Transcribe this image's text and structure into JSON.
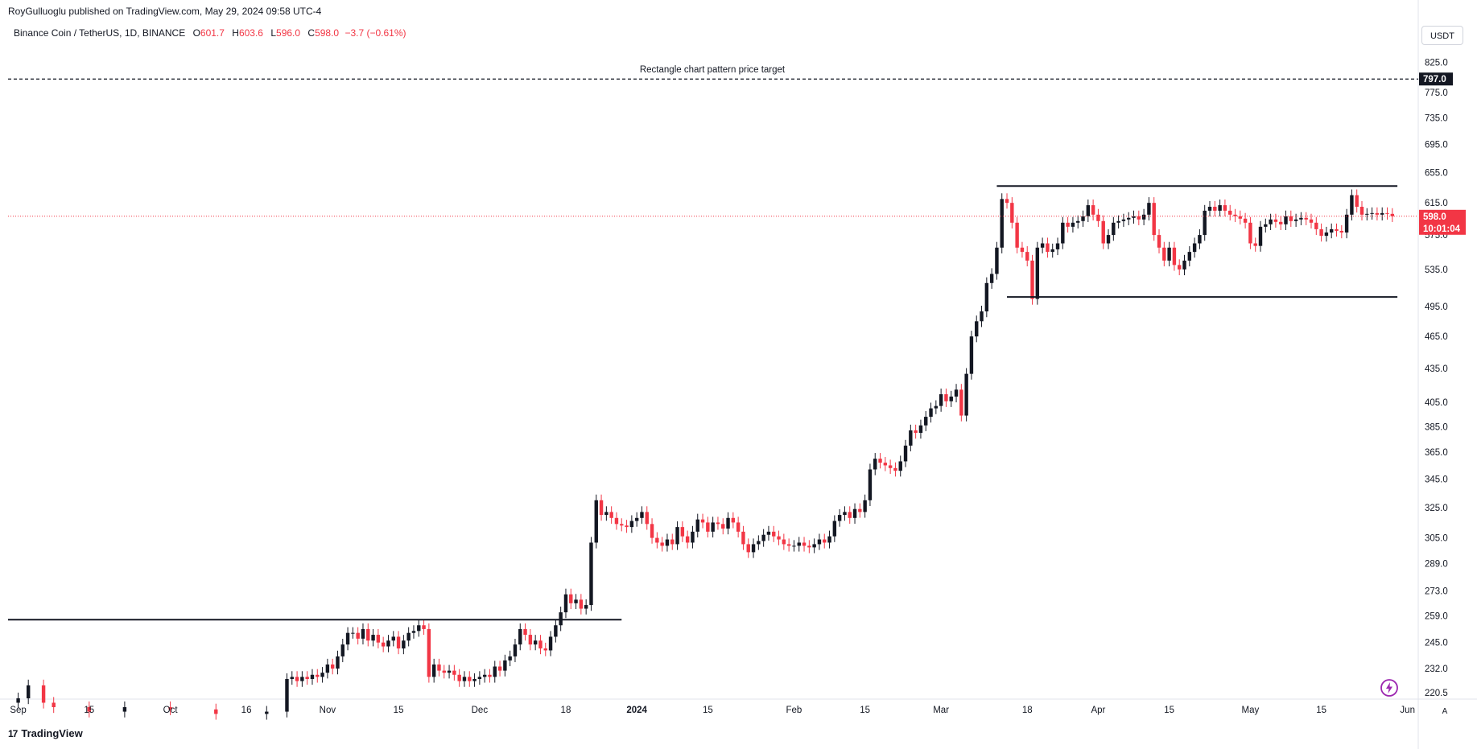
{
  "header": {
    "publisher": "RoyGulluoglu published on TradingView.com, May 29, 2024 09:58 UTC-4",
    "symbol": "Binance Coin / TetherUS, 1D, BINANCE",
    "open_label": "O",
    "open": "601.7",
    "high_label": "H",
    "high": "603.6",
    "low_label": "L",
    "low": "596.0",
    "close_label": "C",
    "close": "598.0",
    "change": "−3.7 (−0.61%)"
  },
  "currency_button": "USDT",
  "auto_button": "A",
  "footer": {
    "brand": "TradingView",
    "mark": "17"
  },
  "colors": {
    "up": "#131722",
    "down": "#f23645",
    "last_price_line": "#f23645",
    "target_tag": "#131722"
  },
  "chart_data": {
    "type": "candlestick",
    "title": "Binance Coin / TetherUS, 1D, BINANCE",
    "ylabel": "USDT",
    "y_scale": "log",
    "ylim": [
      218,
      850
    ],
    "x_range": [
      "2023-08-30",
      "2024-06-02"
    ],
    "y_ticks": [
      "825.0",
      "775.0",
      "735.0",
      "695.0",
      "655.0",
      "615.0",
      "575.0",
      "535.0",
      "495.0",
      "465.0",
      "435.0",
      "405.0",
      "385.0",
      "365.0",
      "345.0",
      "325.0",
      "305.0",
      "289.0",
      "273.0",
      "259.0",
      "245.0",
      "232.0",
      "220.5"
    ],
    "x_ticks": [
      {
        "label": "Sep",
        "date": "2023-09-01"
      },
      {
        "label": "15",
        "date": "2023-09-15"
      },
      {
        "label": "Oct",
        "date": "2023-10-01"
      },
      {
        "label": "16",
        "date": "2023-10-16"
      },
      {
        "label": "Nov",
        "date": "2023-11-01"
      },
      {
        "label": "15",
        "date": "2023-11-15"
      },
      {
        "label": "Dec",
        "date": "2023-12-01"
      },
      {
        "label": "18",
        "date": "2023-12-18"
      },
      {
        "label": "2024",
        "date": "2024-01-01"
      },
      {
        "label": "15",
        "date": "2024-01-15"
      },
      {
        "label": "Feb",
        "date": "2024-02-01"
      },
      {
        "label": "15",
        "date": "2024-02-15"
      },
      {
        "label": "Mar",
        "date": "2024-03-01"
      },
      {
        "label": "18",
        "date": "2024-03-18"
      },
      {
        "label": "Apr",
        "date": "2024-04-01"
      },
      {
        "label": "15",
        "date": "2024-04-15"
      },
      {
        "label": "May",
        "date": "2024-05-01"
      },
      {
        "label": "15",
        "date": "2024-05-15"
      },
      {
        "label": "Jun",
        "date": "2024-06-01"
      }
    ],
    "last_price": {
      "value": 598.0,
      "label": "598.0",
      "countdown": "10:01:04"
    },
    "target": {
      "value": 797.0,
      "label": "797.0",
      "annotation": "Rectangle chart pattern price target"
    },
    "horizontal_lines": [
      {
        "name": "old-resistance",
        "start": "2023-08-30",
        "end": "2023-12-29",
        "value": 257
      },
      {
        "name": "rectangle-top",
        "start": "2024-03-12",
        "end": "2024-05-30",
        "value": 637
      },
      {
        "name": "rectangle-bottom",
        "start": "2024-03-14",
        "end": "2024-05-30",
        "value": 505
      }
    ],
    "grid": false,
    "close_series": [
      [
        "2023-08-30",
        216
      ],
      [
        "2023-09-01",
        218
      ],
      [
        "2023-09-03",
        224
      ],
      [
        "2023-09-06",
        216
      ],
      [
        "2023-09-08",
        214
      ],
      [
        "2023-09-15",
        212
      ],
      [
        "2023-09-22",
        214
      ],
      [
        "2023-10-01",
        213
      ],
      [
        "2023-10-10",
        211
      ],
      [
        "2023-10-20",
        212
      ],
      [
        "2023-10-24",
        227
      ],
      [
        "2023-10-25",
        228
      ],
      [
        "2023-10-26",
        226
      ],
      [
        "2023-10-27",
        228
      ],
      [
        "2023-10-28",
        227
      ],
      [
        "2023-10-29",
        229
      ],
      [
        "2023-10-30",
        228
      ],
      [
        "2023-10-31",
        230
      ],
      [
        "2023-11-01",
        234
      ],
      [
        "2023-11-02",
        232
      ],
      [
        "2023-11-03",
        238
      ],
      [
        "2023-11-04",
        244
      ],
      [
        "2023-11-05",
        250
      ],
      [
        "2023-11-06",
        250
      ],
      [
        "2023-11-07",
        247
      ],
      [
        "2023-11-08",
        252
      ],
      [
        "2023-11-09",
        246
      ],
      [
        "2023-11-10",
        249
      ],
      [
        "2023-11-11",
        245
      ],
      [
        "2023-11-12",
        243
      ],
      [
        "2023-11-13",
        246
      ],
      [
        "2023-11-14",
        248
      ],
      [
        "2023-11-15",
        242
      ],
      [
        "2023-11-16",
        246
      ],
      [
        "2023-11-17",
        250
      ],
      [
        "2023-11-18",
        251
      ],
      [
        "2023-11-19",
        254
      ],
      [
        "2023-11-20",
        252
      ],
      [
        "2023-11-21",
        228
      ],
      [
        "2023-11-22",
        234
      ],
      [
        "2023-11-23",
        231
      ],
      [
        "2023-11-24",
        230
      ],
      [
        "2023-11-25",
        231
      ],
      [
        "2023-11-26",
        229
      ],
      [
        "2023-11-27",
        226
      ],
      [
        "2023-11-28",
        228
      ],
      [
        "2023-11-29",
        226
      ],
      [
        "2023-11-30",
        227
      ],
      [
        "2023-12-01",
        228
      ],
      [
        "2023-12-02",
        229
      ],
      [
        "2023-12-03",
        228
      ],
      [
        "2023-12-04",
        233
      ],
      [
        "2023-12-05",
        231
      ],
      [
        "2023-12-06",
        236
      ],
      [
        "2023-12-07",
        238
      ],
      [
        "2023-12-08",
        244
      ],
      [
        "2023-12-09",
        252
      ],
      [
        "2023-12-10",
        249
      ],
      [
        "2023-12-11",
        244
      ],
      [
        "2023-12-12",
        246
      ],
      [
        "2023-12-13",
        242
      ],
      [
        "2023-12-14",
        241
      ],
      [
        "2023-12-15",
        248
      ],
      [
        "2023-12-16",
        254
      ],
      [
        "2023-12-17",
        261
      ],
      [
        "2023-12-18",
        271
      ],
      [
        "2023-12-19",
        266
      ],
      [
        "2023-12-20",
        268
      ],
      [
        "2023-12-21",
        263
      ],
      [
        "2023-12-22",
        265
      ],
      [
        "2023-12-23",
        302
      ],
      [
        "2023-12-24",
        330
      ],
      [
        "2023-12-25",
        320
      ],
      [
        "2023-12-26",
        322
      ],
      [
        "2023-12-27",
        318
      ],
      [
        "2023-12-28",
        314
      ],
      [
        "2023-12-29",
        313
      ],
      [
        "2023-12-30",
        312
      ],
      [
        "2023-12-31",
        316
      ],
      [
        "2024-01-01",
        318
      ],
      [
        "2024-01-02",
        322
      ],
      [
        "2024-01-03",
        314
      ],
      [
        "2024-01-04",
        305
      ],
      [
        "2024-01-05",
        302
      ],
      [
        "2024-01-06",
        300
      ],
      [
        "2024-01-07",
        304
      ],
      [
        "2024-01-08",
        301
      ],
      [
        "2024-01-09",
        312
      ],
      [
        "2024-01-10",
        306
      ],
      [
        "2024-01-11",
        302
      ],
      [
        "2024-01-12",
        309
      ],
      [
        "2024-01-13",
        317
      ],
      [
        "2024-01-14",
        315
      ],
      [
        "2024-01-15",
        309
      ],
      [
        "2024-01-16",
        315
      ],
      [
        "2024-01-17",
        314
      ],
      [
        "2024-01-18",
        311
      ],
      [
        "2024-01-19",
        318
      ],
      [
        "2024-01-20",
        315
      ],
      [
        "2024-01-21",
        309
      ],
      [
        "2024-01-22",
        301
      ],
      [
        "2024-01-23",
        296
      ],
      [
        "2024-01-24",
        301
      ],
      [
        "2024-01-25",
        303
      ],
      [
        "2024-01-26",
        307
      ],
      [
        "2024-01-27",
        309
      ],
      [
        "2024-01-28",
        306
      ],
      [
        "2024-01-29",
        304
      ],
      [
        "2024-01-30",
        301
      ],
      [
        "2024-01-31",
        300
      ],
      [
        "2024-02-01",
        300
      ],
      [
        "2024-02-02",
        302
      ],
      [
        "2024-02-03",
        300
      ],
      [
        "2024-02-04",
        299
      ],
      [
        "2024-02-05",
        301
      ],
      [
        "2024-02-06",
        304
      ],
      [
        "2024-02-07",
        302
      ],
      [
        "2024-02-08",
        306
      ],
      [
        "2024-02-09",
        316
      ],
      [
        "2024-02-10",
        320
      ],
      [
        "2024-02-11",
        322
      ],
      [
        "2024-02-12",
        318
      ],
      [
        "2024-02-13",
        324
      ],
      [
        "2024-02-14",
        322
      ],
      [
        "2024-02-15",
        330
      ],
      [
        "2024-02-16",
        352
      ],
      [
        "2024-02-17",
        360
      ],
      [
        "2024-02-18",
        357
      ],
      [
        "2024-02-19",
        355
      ],
      [
        "2024-02-20",
        353
      ],
      [
        "2024-02-21",
        351
      ],
      [
        "2024-02-22",
        358
      ],
      [
        "2024-02-23",
        370
      ],
      [
        "2024-02-24",
        382
      ],
      [
        "2024-02-25",
        380
      ],
      [
        "2024-02-26",
        386
      ],
      [
        "2024-02-27",
        393
      ],
      [
        "2024-02-28",
        400
      ],
      [
        "2024-02-29",
        402
      ],
      [
        "2024-03-01",
        412
      ],
      [
        "2024-03-02",
        406
      ],
      [
        "2024-03-03",
        410
      ],
      [
        "2024-03-04",
        416
      ],
      [
        "2024-03-05",
        394
      ],
      [
        "2024-03-06",
        430
      ],
      [
        "2024-03-07",
        465
      ],
      [
        "2024-03-08",
        480
      ],
      [
        "2024-03-09",
        490
      ],
      [
        "2024-03-10",
        520
      ],
      [
        "2024-03-11",
        530
      ],
      [
        "2024-03-12",
        560
      ],
      [
        "2024-03-13",
        620
      ],
      [
        "2024-03-14",
        615
      ],
      [
        "2024-03-15",
        590
      ],
      [
        "2024-03-16",
        560
      ],
      [
        "2024-03-17",
        555
      ],
      [
        "2024-03-18",
        545
      ],
      [
        "2024-03-19",
        503
      ],
      [
        "2024-03-20",
        560
      ],
      [
        "2024-03-21",
        565
      ],
      [
        "2024-03-22",
        555
      ],
      [
        "2024-03-23",
        558
      ],
      [
        "2024-03-24",
        565
      ],
      [
        "2024-03-25",
        590
      ],
      [
        "2024-03-26",
        585
      ],
      [
        "2024-03-27",
        590
      ],
      [
        "2024-03-28",
        592
      ],
      [
        "2024-03-29",
        598
      ],
      [
        "2024-03-30",
        612
      ],
      [
        "2024-03-31",
        600
      ],
      [
        "2024-04-01",
        592
      ],
      [
        "2024-04-02",
        565
      ],
      [
        "2024-04-03",
        575
      ],
      [
        "2024-04-04",
        590
      ],
      [
        "2024-04-05",
        592
      ],
      [
        "2024-04-06",
        594
      ],
      [
        "2024-04-07",
        596
      ],
      [
        "2024-04-08",
        598
      ],
      [
        "2024-04-09",
        594
      ],
      [
        "2024-04-10",
        600
      ],
      [
        "2024-04-11",
        615
      ],
      [
        "2024-04-12",
        575
      ],
      [
        "2024-04-13",
        560
      ],
      [
        "2024-04-14",
        545
      ],
      [
        "2024-04-15",
        560
      ],
      [
        "2024-04-16",
        540
      ],
      [
        "2024-04-17",
        535
      ],
      [
        "2024-04-18",
        545
      ],
      [
        "2024-04-19",
        555
      ],
      [
        "2024-04-20",
        565
      ],
      [
        "2024-04-21",
        575
      ],
      [
        "2024-04-22",
        605
      ],
      [
        "2024-04-23",
        610
      ],
      [
        "2024-04-24",
        605
      ],
      [
        "2024-04-25",
        612
      ],
      [
        "2024-04-26",
        605
      ],
      [
        "2024-04-27",
        600
      ],
      [
        "2024-04-28",
        598
      ],
      [
        "2024-04-29",
        595
      ],
      [
        "2024-04-30",
        590
      ],
      [
        "2024-05-01",
        565
      ],
      [
        "2024-05-02",
        562
      ],
      [
        "2024-05-03",
        585
      ],
      [
        "2024-05-04",
        588
      ],
      [
        "2024-05-05",
        594
      ],
      [
        "2024-05-06",
        591
      ],
      [
        "2024-05-07",
        588
      ],
      [
        "2024-05-08",
        598
      ],
      [
        "2024-05-09",
        592
      ],
      [
        "2024-05-10",
        594
      ],
      [
        "2024-05-11",
        596
      ],
      [
        "2024-05-12",
        594
      ],
      [
        "2024-05-13",
        590
      ],
      [
        "2024-05-14",
        582
      ],
      [
        "2024-05-15",
        574
      ],
      [
        "2024-05-16",
        578
      ],
      [
        "2024-05-17",
        582
      ],
      [
        "2024-05-18",
        580
      ],
      [
        "2024-05-19",
        578
      ],
      [
        "2024-05-20",
        600
      ],
      [
        "2024-05-21",
        625
      ],
      [
        "2024-05-22",
        610
      ],
      [
        "2024-05-23",
        600
      ],
      [
        "2024-05-24",
        601
      ],
      [
        "2024-05-25",
        602
      ],
      [
        "2024-05-26",
        600
      ],
      [
        "2024-05-27",
        602
      ],
      [
        "2024-05-28",
        601
      ],
      [
        "2024-05-29",
        598
      ]
    ]
  }
}
